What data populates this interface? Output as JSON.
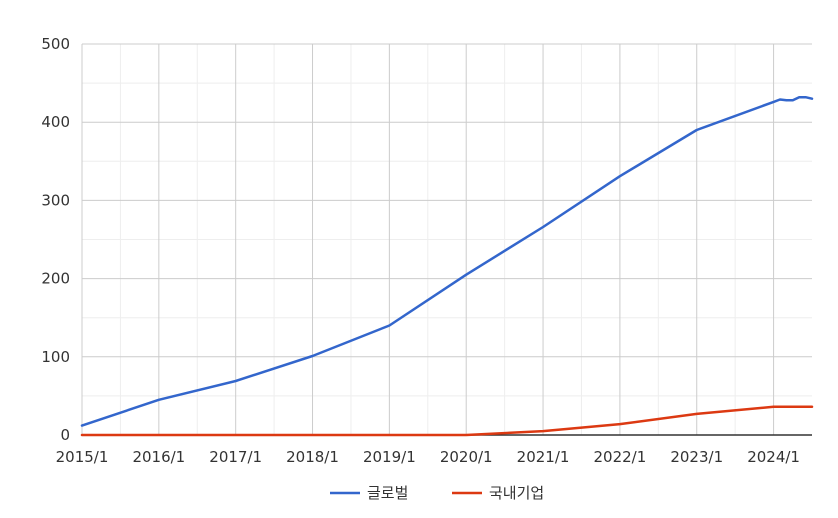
{
  "chart_data": {
    "type": "line",
    "title": "",
    "xlabel": "",
    "ylabel": "",
    "ylim": [
      0,
      500
    ],
    "yticks": [
      0,
      100,
      200,
      300,
      400,
      500
    ],
    "x_tick_labels": [
      "2015/1",
      "2016/1",
      "2017/1",
      "2018/1",
      "2019/1",
      "2020/1",
      "2021/1",
      "2022/1",
      "2023/1",
      "2024/1"
    ],
    "x_range_months": [
      0,
      114
    ],
    "grid": true,
    "legend_position": "bottom",
    "series": [
      {
        "name": "글로벌",
        "color": "#3366cc",
        "x": [
          0,
          12,
          24,
          36,
          48,
          60,
          72,
          84,
          96,
          108,
          109,
          110,
          111,
          112,
          113,
          114
        ],
        "values": [
          12,
          45,
          69,
          101,
          140,
          205,
          266,
          331,
          390,
          426,
          429,
          428,
          428,
          432,
          432,
          430
        ]
      },
      {
        "name": "국내기업",
        "color": "#dc3912",
        "x": [
          0,
          12,
          24,
          36,
          48,
          60,
          72,
          84,
          96,
          108,
          114
        ],
        "values": [
          0,
          0,
          0,
          0,
          0,
          0,
          5,
          14,
          27,
          36,
          36
        ]
      }
    ]
  }
}
